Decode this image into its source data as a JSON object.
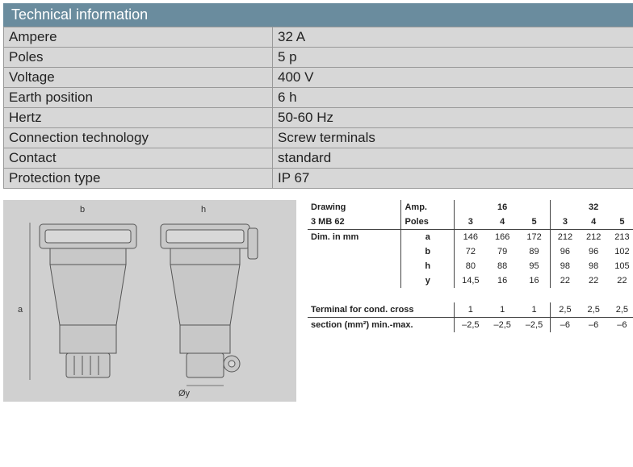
{
  "header": {
    "title": "Technical information"
  },
  "tech_rows": [
    {
      "label": "Ampere",
      "value": "32 A"
    },
    {
      "label": "Poles",
      "value": "5 p"
    },
    {
      "label": "Voltage",
      "value": "400 V"
    },
    {
      "label": "Earth position",
      "value": "6 h"
    },
    {
      "label": "Hertz",
      "value": "50-60 Hz"
    },
    {
      "label": "Connection technology",
      "value": "Screw terminals"
    },
    {
      "label": "Contact",
      "value": "standard"
    },
    {
      "label": "Protection type",
      "value": " IP 67"
    }
  ],
  "drawing": {
    "label_a": "a",
    "label_b": "b",
    "label_h": "h",
    "label_y": "Øy"
  },
  "dims": {
    "header": {
      "drawing": "Drawing",
      "model": "3 MB 62",
      "amp": "Amp.",
      "poles": "Poles",
      "dim_in_mm": "Dim. in mm",
      "terminal1": "Terminal for cond. cross",
      "terminal2": "section (mm²) min.-max."
    },
    "amp_groups": [
      "16",
      "32"
    ],
    "pole_cols": [
      "3",
      "4",
      "5",
      "3",
      "4",
      "5"
    ],
    "rows": [
      {
        "dim": "a",
        "vals": [
          "146",
          "166",
          "172",
          "212",
          "212",
          "213"
        ]
      },
      {
        "dim": "b",
        "vals": [
          "72",
          "79",
          "89",
          "96",
          "96",
          "102"
        ]
      },
      {
        "dim": "h",
        "vals": [
          "80",
          "88",
          "95",
          "98",
          "98",
          "105"
        ]
      },
      {
        "dim": "y",
        "vals": [
          "14,5",
          "16",
          "16",
          "22",
          "22",
          "22"
        ]
      }
    ],
    "term_min": [
      "1",
      "1",
      "1",
      "2,5",
      "2,5",
      "2,5"
    ],
    "term_max": [
      "–2,5",
      "–2,5",
      "–2,5",
      "–6",
      "–6",
      "–6"
    ]
  },
  "colors": {
    "header_bg": "#6a8c9e",
    "table_bg": "#d7d7d7",
    "border": "#999999",
    "drawing_bg": "#d0d0d0"
  }
}
